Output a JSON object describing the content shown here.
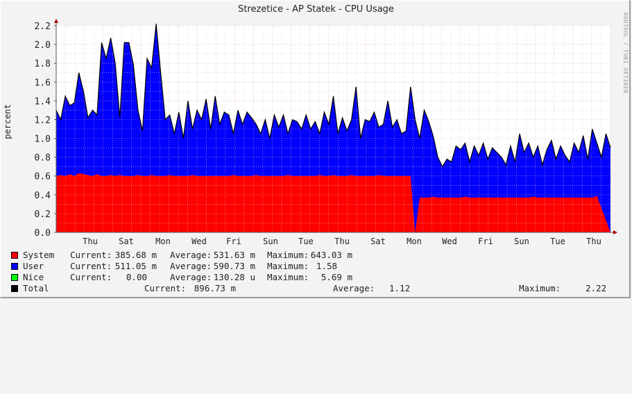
{
  "title": "Strezetice - AP Statek - CPU Usage",
  "watermark": "RRDTOOL / TOBI OETIKER",
  "legend": [
    {
      "name": "System",
      "color": "#ff0000",
      "current_label": "Current:",
      "current": "385.68 m",
      "average_label": "Average:",
      "average": "531.63 m",
      "maximum_label": "Maximum:",
      "maximum": "643.03 m"
    },
    {
      "name": "User",
      "color": "#0000ff",
      "current_label": "Current:",
      "current": "511.05 m",
      "average_label": "Average:",
      "average": "590.73 m",
      "maximum_label": "Maximum:",
      "maximum": "1.58"
    },
    {
      "name": "Nice",
      "color": "#00ff00",
      "current_label": "Current:",
      "current": "0.00",
      "average_label": "Average:",
      "average": "130.28 u",
      "maximum_label": "Maximum:",
      "maximum": "5.69 m"
    },
    {
      "name": "Total",
      "color": "#000000",
      "current_label": "Current:",
      "current": "896.73 m",
      "average_label": "Average:",
      "average": "1.12",
      "maximum_label": "Maximum:",
      "maximum": "2.22"
    }
  ],
  "chart_data": {
    "type": "area",
    "title": "Strezetice - AP Statek - CPU Usage",
    "xlabel": "",
    "ylabel": "percent",
    "ylim": [
      0,
      2.2
    ],
    "yticks": [
      0.0,
      0.2,
      0.4,
      0.6,
      0.8,
      1.0,
      1.2,
      1.4,
      1.6,
      1.8,
      2.0,
      2.2
    ],
    "ytick_labels": [
      "0.0",
      "0.2",
      "0.4",
      "0.6",
      "0.8",
      "1.0",
      "1.2",
      "1.4",
      "1.6",
      "1.8",
      "2.0",
      "2.2"
    ],
    "xtick_labels": [
      "Thu",
      "Sat",
      "Mon",
      "Wed",
      "Fri",
      "Sun",
      "Tue",
      "Thu",
      "Sat",
      "Mon",
      "Wed",
      "Fri",
      "Sun",
      "Tue",
      "Thu"
    ],
    "grid": true,
    "stacked": true,
    "series": [
      {
        "name": "System",
        "color": "#ff0000",
        "values": [
          0.6,
          0.61,
          0.6,
          0.62,
          0.6,
          0.63,
          0.62,
          0.61,
          0.6,
          0.62,
          0.6,
          0.6,
          0.61,
          0.6,
          0.61,
          0.6,
          0.6,
          0.6,
          0.61,
          0.6,
          0.6,
          0.61,
          0.6,
          0.6,
          0.6,
          0.61,
          0.6,
          0.6,
          0.6,
          0.6,
          0.61,
          0.6,
          0.6,
          0.6,
          0.6,
          0.6,
          0.6,
          0.6,
          0.6,
          0.61,
          0.6,
          0.6,
          0.6,
          0.6,
          0.61,
          0.6,
          0.6,
          0.6,
          0.6,
          0.6,
          0.6,
          0.61,
          0.6,
          0.6,
          0.6,
          0.6,
          0.6,
          0.6,
          0.61,
          0.6,
          0.6,
          0.61,
          0.6,
          0.6,
          0.6,
          0.61,
          0.6,
          0.6,
          0.6,
          0.6,
          0.6,
          0.61,
          0.6,
          0.6,
          0.6,
          0.6,
          0.6,
          0.6,
          0.6,
          0.0,
          0.37,
          0.37,
          0.37,
          0.38,
          0.37,
          0.37,
          0.37,
          0.37,
          0.37,
          0.37,
          0.38,
          0.37,
          0.37,
          0.37,
          0.37,
          0.37,
          0.37,
          0.37,
          0.37,
          0.37,
          0.37,
          0.37,
          0.37,
          0.37,
          0.37,
          0.38,
          0.37,
          0.37,
          0.37,
          0.37,
          0.37,
          0.37,
          0.37,
          0.37,
          0.37,
          0.37,
          0.37,
          0.37,
          0.37,
          0.39
        ]
      },
      {
        "name": "Total",
        "color": "#000000",
        "values": [
          1.3,
          1.2,
          1.45,
          1.35,
          1.38,
          1.7,
          1.5,
          1.22,
          1.3,
          1.25,
          2.02,
          1.85,
          2.07,
          1.8,
          1.22,
          2.02,
          2.02,
          1.78,
          1.3,
          1.08,
          1.85,
          1.75,
          2.22,
          1.7,
          1.2,
          1.25,
          1.05,
          1.28,
          1.0,
          1.4,
          1.1,
          1.3,
          1.2,
          1.42,
          1.1,
          1.45,
          1.15,
          1.28,
          1.25,
          1.05,
          1.3,
          1.15,
          1.28,
          1.22,
          1.15,
          1.05,
          1.2,
          1.0,
          1.25,
          1.12,
          1.25,
          1.05,
          1.2,
          1.18,
          1.1,
          1.25,
          1.1,
          1.18,
          1.05,
          1.28,
          1.15,
          1.45,
          1.05,
          1.22,
          1.08,
          1.2,
          1.55,
          1.0,
          1.2,
          1.18,
          1.28,
          1.12,
          1.15,
          1.4,
          1.12,
          1.2,
          1.05,
          1.08,
          1.55,
          1.2,
          1.0,
          1.3,
          1.18,
          1.02,
          0.8,
          0.7,
          0.78,
          0.75,
          0.92,
          0.88,
          0.95,
          0.75,
          0.92,
          0.82,
          0.95,
          0.78,
          0.9,
          0.85,
          0.8,
          0.72,
          0.92,
          0.75,
          1.05,
          0.85,
          0.95,
          0.8,
          0.92,
          0.72,
          0.88,
          0.98,
          0.78,
          0.92,
          0.82,
          0.75,
          0.95,
          0.85,
          1.03,
          0.78,
          1.1,
          0.95,
          0.8,
          1.05,
          0.9
        ]
      },
      {
        "name": "Nice",
        "color": "#00ff00",
        "values": [
          0
        ]
      }
    ]
  }
}
